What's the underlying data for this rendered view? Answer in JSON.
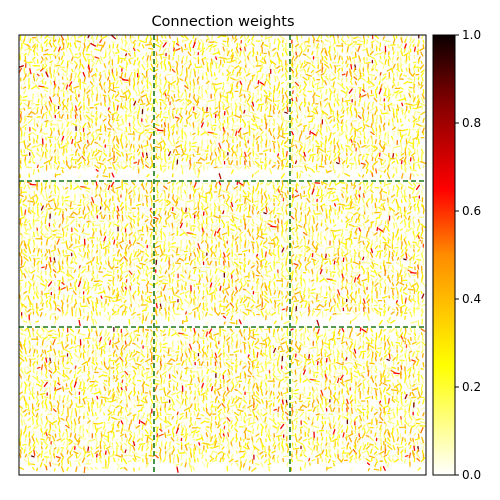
{
  "chart_data": {
    "type": "heatmap",
    "title": "Connection weights",
    "xlabel": "",
    "ylabel": "",
    "xticks": [],
    "yticks": [],
    "grid": false,
    "legend": "none",
    "panels": {
      "rows": 3,
      "cols": 3
    },
    "panel_separator": {
      "style": "dashed",
      "color": "#1a7a1a"
    },
    "colormap": "hot_r",
    "colorbar": {
      "range": [
        0.0,
        1.0
      ],
      "ticks": [
        0.0,
        0.2,
        0.4,
        0.6,
        0.8,
        1.0
      ],
      "tick_labels": [
        "0.0",
        "0.2",
        "0.4",
        "0.6",
        "0.8",
        "1.0"
      ],
      "stops": [
        {
          "value": 0.0,
          "color": "#ffffff"
        },
        {
          "value": 0.25,
          "color": "#ffff00"
        },
        {
          "value": 0.5,
          "color": "#ff8c00"
        },
        {
          "value": 0.65,
          "color": "#ff0000"
        },
        {
          "value": 0.85,
          "color": "#800000"
        },
        {
          "value": 1.0,
          "color": "#0a0000"
        }
      ]
    },
    "weights_summary": {
      "typical_range": [
        0.1,
        0.45
      ],
      "max_observed": 0.9
    }
  }
}
